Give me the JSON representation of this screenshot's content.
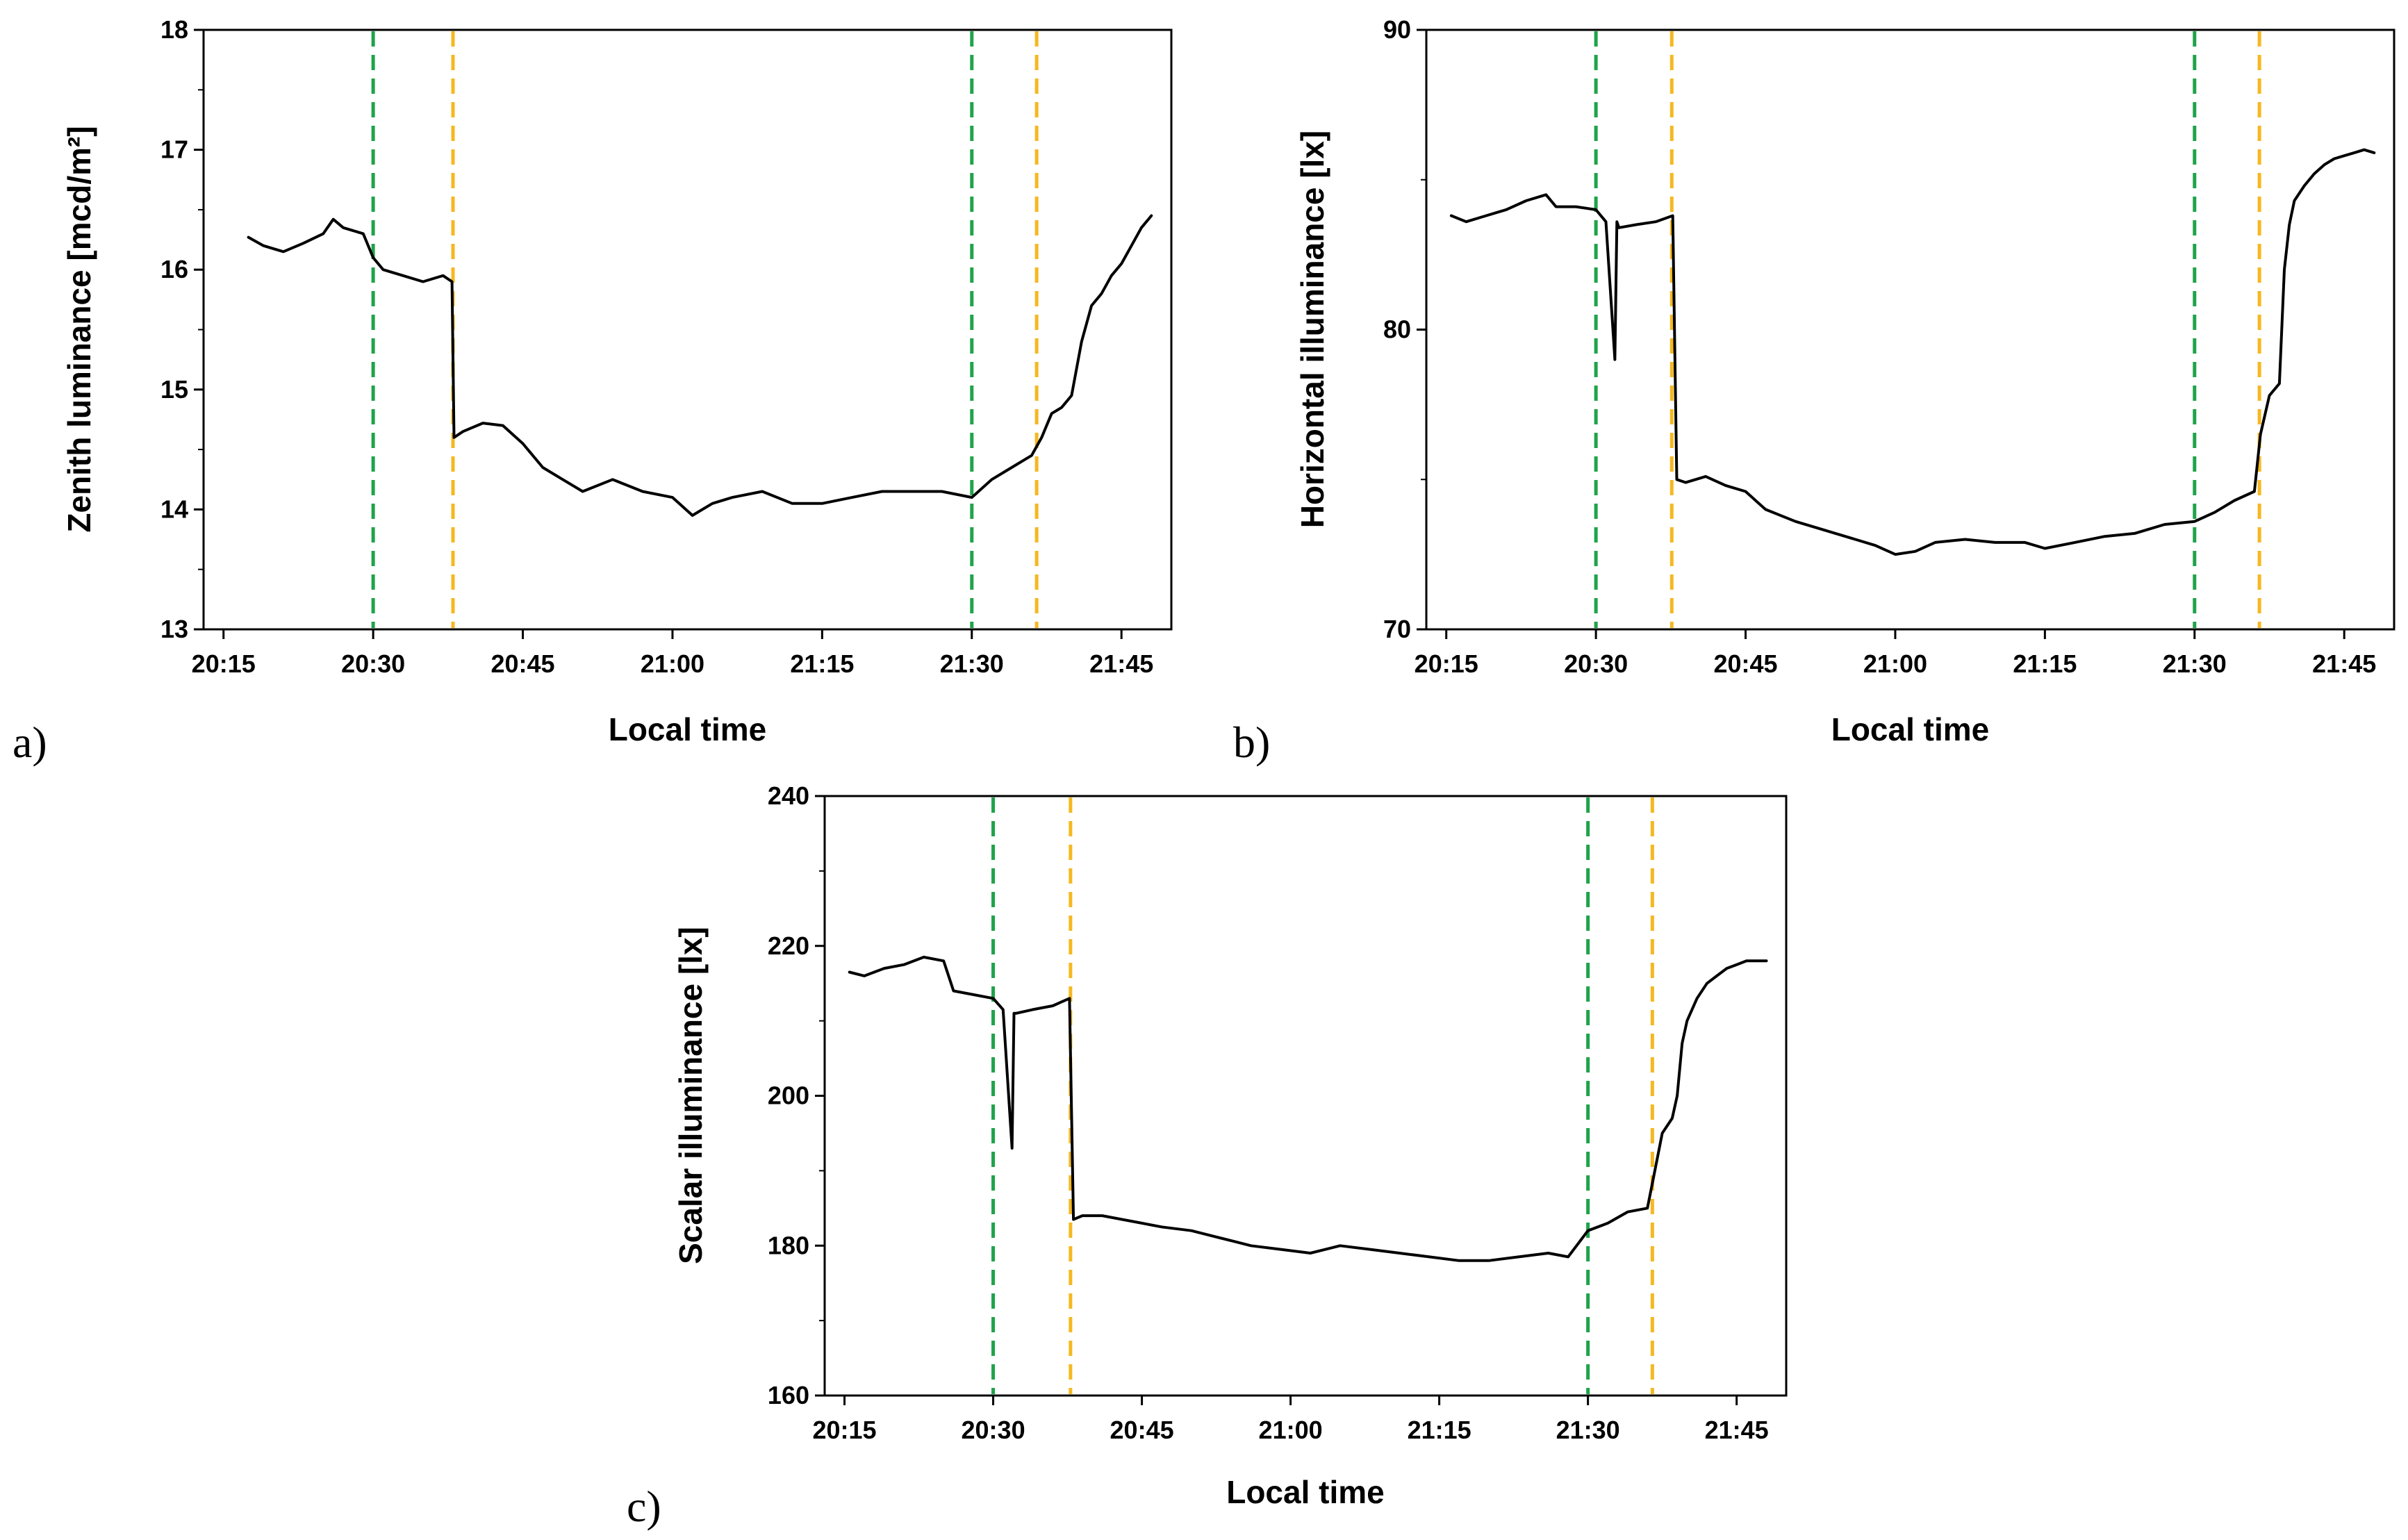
{
  "chart_data": [
    {
      "type": "line",
      "panel": "a)",
      "xlabel": "Local time",
      "ylabel": "Zenith luminance [mcd/m²]",
      "ylim": [
        13,
        18
      ],
      "yticks": [
        "13",
        "14",
        "15",
        "16",
        "17",
        "18"
      ],
      "xlim_min": [
        1213,
        1310
      ],
      "xtick_min": [
        1215,
        1230,
        1245,
        1260,
        1275,
        1290,
        1305
      ],
      "xtick_labels": [
        "20:15",
        "20:30",
        "20:45",
        "21:00",
        "21:15",
        "21:30",
        "21:45"
      ],
      "vlines": [
        {
          "x_min": 1230,
          "color": "#1fa34a",
          "style": "dashed"
        },
        {
          "x_min": 1238,
          "color": "#f5b820",
          "style": "dashed"
        },
        {
          "x_min": 1290,
          "color": "#1fa34a",
          "style": "dashed"
        },
        {
          "x_min": 1296.5,
          "color": "#f5b820",
          "style": "dashed"
        }
      ],
      "series": [
        {
          "name": "Zenith luminance",
          "color": "#000000",
          "x_min": [
            1217.5,
            1219,
            1221,
            1223,
            1225,
            1226,
            1227,
            1229,
            1230,
            1231,
            1233,
            1235,
            1237,
            1237.9,
            1238.1,
            1239,
            1241,
            1243,
            1245,
            1247,
            1249,
            1251,
            1254,
            1257,
            1260,
            1262,
            1264,
            1266,
            1269,
            1272,
            1275,
            1278,
            1281,
            1284,
            1287,
            1290,
            1292,
            1294,
            1296,
            1297,
            1298,
            1299,
            1300,
            1301,
            1302,
            1303,
            1304,
            1305,
            1306,
            1307,
            1308
          ],
          "values": [
            16.27,
            16.2,
            16.15,
            16.22,
            16.3,
            16.42,
            16.35,
            16.3,
            16.1,
            16.0,
            15.95,
            15.9,
            15.95,
            15.9,
            14.6,
            14.65,
            14.72,
            14.7,
            14.55,
            14.35,
            14.25,
            14.15,
            14.25,
            14.15,
            14.1,
            13.95,
            14.05,
            14.1,
            14.15,
            14.05,
            14.05,
            14.1,
            14.15,
            14.15,
            14.15,
            14.1,
            14.25,
            14.35,
            14.45,
            14.6,
            14.8,
            14.85,
            14.95,
            15.4,
            15.7,
            15.8,
            15.95,
            16.05,
            16.2,
            16.35,
            16.45
          ]
        }
      ]
    },
    {
      "type": "line",
      "panel": "b)",
      "xlabel": "Local time",
      "ylabel": "Horizontal illuminance [lx]",
      "ylim": [
        70,
        90
      ],
      "yticks": [
        "70",
        "80",
        "90"
      ],
      "xlim_min": [
        1213,
        1310
      ],
      "xtick_min": [
        1215,
        1230,
        1245,
        1260,
        1275,
        1290,
        1305
      ],
      "xtick_labels": [
        "20:15",
        "20:30",
        "20:45",
        "21:00",
        "21:15",
        "21:30",
        "21:45"
      ],
      "vlines": [
        {
          "x_min": 1230,
          "color": "#1fa34a",
          "style": "dashed"
        },
        {
          "x_min": 1237.6,
          "color": "#f5b820",
          "style": "dashed"
        },
        {
          "x_min": 1290,
          "color": "#1fa34a",
          "style": "dashed"
        },
        {
          "x_min": 1296.5,
          "color": "#f5b820",
          "style": "dashed"
        }
      ],
      "series": [
        {
          "name": "Horizontal illuminance",
          "color": "#000000",
          "x_min": [
            1215.5,
            1217,
            1219,
            1221,
            1223,
            1225,
            1226,
            1228,
            1230,
            1231,
            1231.9,
            1232.1,
            1232.3,
            1234,
            1236,
            1237.7,
            1238.1,
            1239,
            1241,
            1243,
            1245,
            1247,
            1250,
            1253,
            1256,
            1258,
            1260,
            1262,
            1264,
            1267,
            1270,
            1273,
            1275,
            1278,
            1281,
            1284,
            1287,
            1290,
            1292,
            1294,
            1296,
            1296.6,
            1297.5,
            1298.5,
            1299,
            1299.5,
            1300,
            1301,
            1302,
            1303,
            1304,
            1305,
            1306,
            1307,
            1308
          ],
          "values": [
            83.8,
            83.6,
            83.8,
            84.0,
            84.3,
            84.5,
            84.1,
            84.1,
            84.0,
            83.6,
            79.0,
            83.6,
            83.4,
            83.5,
            83.6,
            83.8,
            75.0,
            74.9,
            75.1,
            74.8,
            74.6,
            74.0,
            73.6,
            73.3,
            73.0,
            72.8,
            72.5,
            72.6,
            72.9,
            73.0,
            72.9,
            72.9,
            72.7,
            72.9,
            73.1,
            73.2,
            73.5,
            73.6,
            73.9,
            74.3,
            74.6,
            76.5,
            77.8,
            78.2,
            82.0,
            83.5,
            84.3,
            84.8,
            85.2,
            85.5,
            85.7,
            85.8,
            85.9,
            86.0,
            85.9
          ]
        }
      ]
    },
    {
      "type": "line",
      "panel": "c)",
      "xlabel": "Local time",
      "ylabel": "Scalar illuminance [lx]",
      "ylim": [
        160,
        240
      ],
      "yticks": [
        "160",
        "180",
        "200",
        "220",
        "240"
      ],
      "xlim_min": [
        1213,
        1310
      ],
      "xtick_min": [
        1215,
        1230,
        1245,
        1260,
        1275,
        1290,
        1305
      ],
      "xtick_labels": [
        "20:15",
        "20:30",
        "20:45",
        "21:00",
        "21:15",
        "21:30",
        "21:45"
      ],
      "vlines": [
        {
          "x_min": 1230,
          "color": "#1fa34a",
          "style": "dashed"
        },
        {
          "x_min": 1237.8,
          "color": "#f5b820",
          "style": "dashed"
        },
        {
          "x_min": 1290,
          "color": "#1fa34a",
          "style": "dashed"
        },
        {
          "x_min": 1296.5,
          "color": "#f5b820",
          "style": "dashed"
        }
      ],
      "series": [
        {
          "name": "Scalar illuminance",
          "color": "#000000",
          "x_min": [
            1215.5,
            1217,
            1219,
            1221,
            1223,
            1225,
            1226,
            1228,
            1230,
            1231,
            1231.9,
            1232.1,
            1232.3,
            1234,
            1236,
            1237.7,
            1238.1,
            1239,
            1241,
            1243,
            1245,
            1247,
            1250,
            1253,
            1256,
            1259,
            1262,
            1265,
            1268,
            1271,
            1274,
            1277,
            1280,
            1283,
            1286,
            1288,
            1290,
            1292,
            1294,
            1296,
            1296.6,
            1297.5,
            1298.5,
            1299,
            1299.5,
            1300,
            1301,
            1302,
            1303,
            1304,
            1305,
            1306,
            1307,
            1308
          ],
          "values": [
            216.5,
            216.0,
            217.0,
            217.5,
            218.5,
            218.0,
            214.0,
            213.5,
            213.0,
            211.5,
            193.0,
            211.0,
            211.0,
            211.5,
            212.0,
            213.0,
            183.5,
            184.0,
            184.0,
            183.5,
            183.0,
            182.5,
            182.0,
            181.0,
            180.0,
            179.5,
            179.0,
            180.0,
            179.5,
            179.0,
            178.5,
            178.0,
            178.0,
            178.5,
            179.0,
            178.5,
            182.0,
            183.0,
            184.5,
            185.0,
            189.0,
            195.0,
            197.0,
            200.0,
            207.0,
            210.0,
            213.0,
            215.0,
            216.0,
            217.0,
            217.5,
            218.0,
            218.0,
            218.0
          ]
        }
      ]
    }
  ]
}
